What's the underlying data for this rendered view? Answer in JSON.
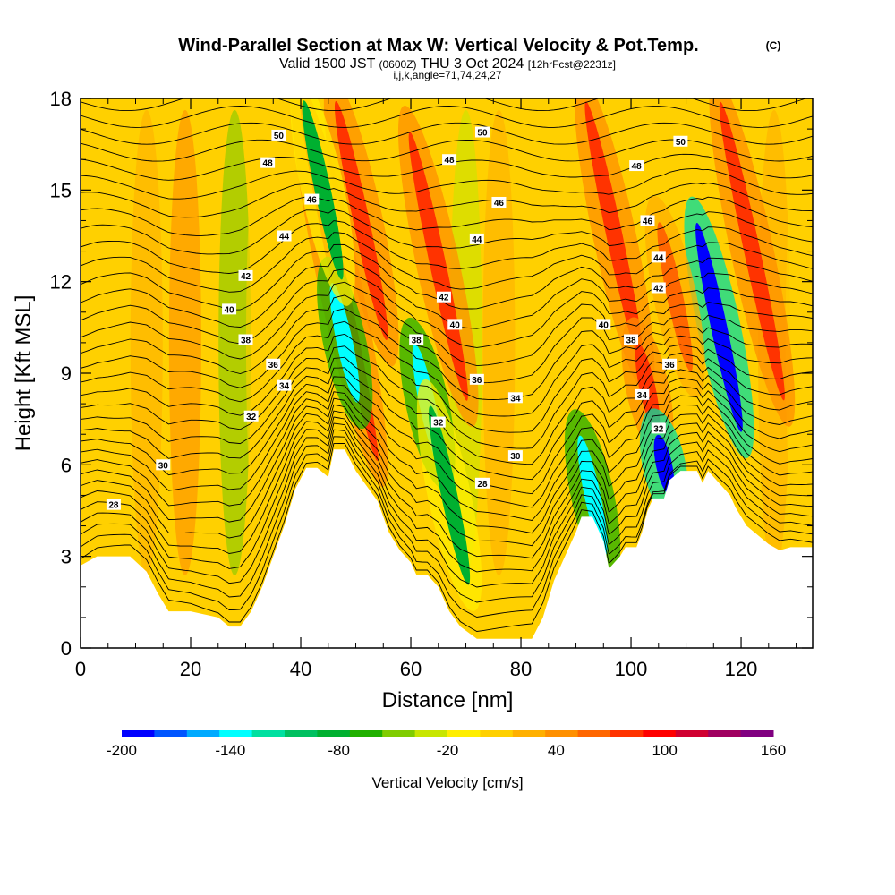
{
  "header": {
    "title": "Wind-Parallel Section at Max W: Vertical Velocity & Pot.Temp.",
    "copyright": "(C)",
    "valid_prefix": "Valid 1500 JST",
    "valid_utc": "(0600Z)",
    "valid_date": "THU 3 Oct 2024",
    "forecast_info": "[12hrFcst@2231z]",
    "grid_info": "i,j,k,angle=71,74,24,27"
  },
  "chart_data": {
    "type": "heatmap",
    "xlabel": "Distance [nm]",
    "ylabel": "Height [Kft MSL]",
    "xlim": [
      0,
      133
    ],
    "ylim": [
      0,
      18
    ],
    "x_ticks": [
      "0",
      "20",
      "40",
      "60",
      "80",
      "100",
      "120"
    ],
    "y_ticks": [
      "0",
      "3",
      "6",
      "9",
      "12",
      "15",
      "18"
    ],
    "colorbar": {
      "label": "Vertical Velocity [cm/s]",
      "min": -200,
      "max": 160,
      "step": 20,
      "tick_labels": [
        "-200",
        "-140",
        "-80",
        "-20",
        "40",
        "100",
        "160"
      ],
      "colors": [
        "#0000ff",
        "#0055ff",
        "#00aaff",
        "#00ffff",
        "#00e0a0",
        "#00c060",
        "#00b030",
        "#20b000",
        "#80cc00",
        "#c8e600",
        "#ffee00",
        "#ffd000",
        "#ffb000",
        "#ff9000",
        "#ff6600",
        "#ff3300",
        "#ff0000",
        "#d00030",
        "#a00060",
        "#800080"
      ]
    },
    "terrain_kft": [
      [
        0,
        2.7
      ],
      [
        3,
        3.0
      ],
      [
        9,
        3.0
      ],
      [
        12,
        2.5
      ],
      [
        14,
        1.8
      ],
      [
        16,
        1.2
      ],
      [
        20,
        1.2
      ],
      [
        25,
        1.0
      ],
      [
        27,
        0.7
      ],
      [
        29,
        0.7
      ],
      [
        31,
        1.2
      ],
      [
        33,
        2.0
      ],
      [
        35,
        3.0
      ],
      [
        37,
        4.0
      ],
      [
        39,
        5.2
      ],
      [
        41,
        5.9
      ],
      [
        43,
        5.9
      ],
      [
        45,
        5.6
      ],
      [
        46,
        6.5
      ],
      [
        48,
        6.5
      ],
      [
        50,
        5.8
      ],
      [
        52,
        5.3
      ],
      [
        54,
        4.8
      ],
      [
        56,
        3.8
      ],
      [
        58,
        3.2
      ],
      [
        60,
        2.8
      ],
      [
        61,
        2.4
      ],
      [
        63,
        2.4
      ],
      [
        65,
        2.0
      ],
      [
        67,
        1.2
      ],
      [
        69,
        0.7
      ],
      [
        72,
        0.3
      ],
      [
        75,
        0.3
      ],
      [
        78,
        0.3
      ],
      [
        82,
        0.3
      ],
      [
        84,
        1.0
      ],
      [
        86,
        2.2
      ],
      [
        88,
        3.0
      ],
      [
        90,
        3.8
      ],
      [
        91,
        4.3
      ],
      [
        93,
        4.3
      ],
      [
        95,
        3.5
      ],
      [
        96,
        2.6
      ],
      [
        98,
        3.0
      ],
      [
        99,
        3.3
      ],
      [
        101,
        3.3
      ],
      [
        102,
        3.8
      ],
      [
        103,
        4.5
      ],
      [
        104,
        4.9
      ],
      [
        106,
        4.9
      ],
      [
        107,
        5.5
      ],
      [
        109,
        5.8
      ],
      [
        112,
        5.8
      ],
      [
        113,
        5.4
      ],
      [
        114,
        5.8
      ],
      [
        116,
        5.4
      ],
      [
        118,
        5.0
      ],
      [
        119,
        4.6
      ],
      [
        121,
        4.0
      ],
      [
        123,
        3.7
      ],
      [
        125,
        3.4
      ],
      [
        127,
        3.2
      ],
      [
        129,
        3.3
      ],
      [
        133,
        3.3
      ]
    ],
    "vertical_velocity_features": [
      {
        "x": 47,
        "height_range": [
          6,
          18
        ],
        "w_cm_s": 100
      },
      {
        "x": 51,
        "height_range": [
          10,
          18
        ],
        "w_cm_s": 100
      },
      {
        "x": 48,
        "height_range": [
          8,
          12
        ],
        "w_cm_s": -140
      },
      {
        "x": 44,
        "height_range": [
          12,
          18
        ],
        "w_cm_s": -80
      },
      {
        "x": 65,
        "height_range": [
          8,
          17
        ],
        "w_cm_s": 100
      },
      {
        "x": 63,
        "height_range": [
          6,
          10
        ],
        "w_cm_s": -140
      },
      {
        "x": 67,
        "height_range": [
          2,
          8
        ],
        "w_cm_s": -80
      },
      {
        "x": 97,
        "height_range": [
          9,
          18
        ],
        "w_cm_s": 100
      },
      {
        "x": 93,
        "height_range": [
          3,
          7
        ],
        "w_cm_s": -140
      },
      {
        "x": 103,
        "height_range": [
          7,
          10
        ],
        "w_cm_s": 100
      },
      {
        "x": 106,
        "height_range": [
          5,
          7
        ],
        "w_cm_s": -200
      },
      {
        "x": 116,
        "height_range": [
          7,
          14
        ],
        "w_cm_s": -200
      },
      {
        "x": 122,
        "height_range": [
          8,
          18
        ],
        "w_cm_s": 100
      },
      {
        "x": 108,
        "height_range": [
          9,
          14
        ],
        "w_cm_s": 80
      }
    ],
    "theta_contour_labels": [
      {
        "x": 6,
        "y": 4.7,
        "label": "28"
      },
      {
        "x": 15,
        "y": 6.0,
        "label": "30"
      },
      {
        "x": 31,
        "y": 7.6,
        "label": "32"
      },
      {
        "x": 37,
        "y": 8.6,
        "label": "34"
      },
      {
        "x": 35,
        "y": 9.3,
        "label": "36"
      },
      {
        "x": 30,
        "y": 10.1,
        "label": "38"
      },
      {
        "x": 27,
        "y": 11.1,
        "label": "40"
      },
      {
        "x": 30,
        "y": 12.2,
        "label": "42"
      },
      {
        "x": 37,
        "y": 13.5,
        "label": "44"
      },
      {
        "x": 42,
        "y": 14.7,
        "label": "46"
      },
      {
        "x": 34,
        "y": 15.9,
        "label": "48"
      },
      {
        "x": 36,
        "y": 16.8,
        "label": "50"
      },
      {
        "x": 73,
        "y": 5.4,
        "label": "28"
      },
      {
        "x": 79,
        "y": 6.3,
        "label": "30"
      },
      {
        "x": 65,
        "y": 7.4,
        "label": "32"
      },
      {
        "x": 79,
        "y": 8.2,
        "label": "34"
      },
      {
        "x": 72,
        "y": 8.8,
        "label": "36"
      },
      {
        "x": 61,
        "y": 10.1,
        "label": "38"
      },
      {
        "x": 68,
        "y": 10.6,
        "label": "40"
      },
      {
        "x": 66,
        "y": 11.5,
        "label": "42"
      },
      {
        "x": 72,
        "y": 13.4,
        "label": "44"
      },
      {
        "x": 76,
        "y": 14.6,
        "label": "46"
      },
      {
        "x": 67,
        "y": 16.0,
        "label": "48"
      },
      {
        "x": 73,
        "y": 16.9,
        "label": "50"
      },
      {
        "x": 105,
        "y": 7.2,
        "label": "32"
      },
      {
        "x": 102,
        "y": 8.3,
        "label": "34"
      },
      {
        "x": 107,
        "y": 9.3,
        "label": "36"
      },
      {
        "x": 100,
        "y": 10.1,
        "label": "38"
      },
      {
        "x": 95,
        "y": 10.6,
        "label": "40"
      },
      {
        "x": 105,
        "y": 11.8,
        "label": "42"
      },
      {
        "x": 105,
        "y": 12.8,
        "label": "44"
      },
      {
        "x": 103,
        "y": 14.0,
        "label": "46"
      },
      {
        "x": 101,
        "y": 15.8,
        "label": "48"
      },
      {
        "x": 109,
        "y": 16.6,
        "label": "50"
      }
    ]
  }
}
